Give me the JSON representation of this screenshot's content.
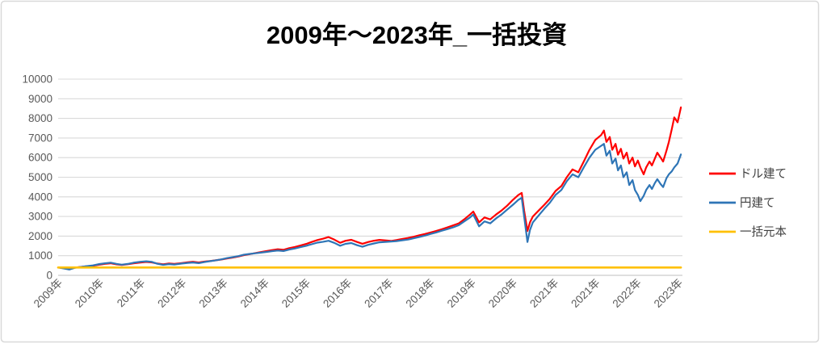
{
  "chart_data": {
    "type": "line",
    "title": "2009年〜2023年_一括投資",
    "xlabel": "",
    "ylabel": "",
    "ylim": [
      0,
      10000
    ],
    "y_ticks": [
      0,
      1000,
      2000,
      3000,
      4000,
      5000,
      6000,
      7000,
      8000,
      9000,
      10000
    ],
    "x_tick_labels": [
      "2009年",
      "2010年",
      "2011年",
      "2012年",
      "2013年",
      "2014年",
      "2015年",
      "2016年",
      "2017年",
      "2018年",
      "2019年",
      "2020年",
      "2021年",
      "2021年",
      "2022年",
      "2023年"
    ],
    "x_domain": [
      0,
      15.06
    ],
    "grid": true,
    "legend_position": "right",
    "series": [
      {
        "name": "ドル建て",
        "color": "#FF0000",
        "x": [
          0,
          0.14,
          0.27,
          0.41,
          0.55,
          0.68,
          0.82,
          1,
          1.13,
          1.27,
          1.41,
          1.54,
          1.68,
          1.82,
          1.99,
          2.13,
          2.27,
          2.4,
          2.54,
          2.68,
          2.81,
          2.99,
          3.13,
          3.26,
          3.4,
          3.54,
          3.67,
          3.81,
          3.95,
          4.08,
          4.22,
          4.36,
          4.49,
          4.63,
          4.77,
          4.9,
          5.04,
          5.18,
          5.31,
          5.45,
          5.59,
          5.72,
          5.86,
          6,
          6.13,
          6.27,
          6.41,
          6.54,
          6.68,
          6.82,
          6.95,
          7.09,
          7.23,
          7.36,
          7.5,
          7.64,
          7.77,
          7.91,
          8.05,
          8.18,
          8.32,
          8.46,
          8.59,
          8.73,
          8.87,
          9,
          9.14,
          9.28,
          9.41,
          9.55,
          9.69,
          9.82,
          9.96,
          10.04,
          10.18,
          10.31,
          10.45,
          10.59,
          10.72,
          10.86,
          11,
          11.13,
          11.21,
          11.27,
          11.35,
          11.41,
          11.48,
          11.62,
          11.76,
          11.89,
          12.03,
          12.17,
          12.3,
          12.44,
          12.58,
          12.71,
          12.85,
          12.99,
          13.13,
          13.2,
          13.26,
          13.34,
          13.4,
          13.48,
          13.54,
          13.61,
          13.67,
          13.75,
          13.81,
          13.89,
          13.95,
          14.02,
          14.08,
          14.16,
          14.22,
          14.3,
          14.36,
          14.43,
          14.49,
          14.57,
          14.63,
          14.71,
          14.77,
          14.84,
          14.9,
          14.98,
          15.06
        ],
        "values": [
          400,
          370,
          340,
          400,
          430,
          455,
          480,
          545,
          585,
          615,
          560,
          530,
          565,
          610,
          655,
          685,
          660,
          600,
          565,
          600,
          580,
          625,
          665,
          690,
          655,
          700,
          730,
          765,
          805,
          855,
          905,
          960,
          1030,
          1080,
          1135,
          1185,
          1240,
          1290,
          1330,
          1300,
          1385,
          1445,
          1520,
          1600,
          1700,
          1800,
          1870,
          1950,
          1820,
          1660,
          1760,
          1810,
          1700,
          1610,
          1700,
          1765,
          1805,
          1780,
          1755,
          1800,
          1855,
          1905,
          1965,
          2035,
          2105,
          2180,
          2260,
          2350,
          2440,
          2545,
          2650,
          2850,
          3100,
          3250,
          2700,
          2950,
          2850,
          3100,
          3300,
          3550,
          3850,
          4100,
          4200,
          3300,
          2260,
          2700,
          3000,
          3300,
          3600,
          3900,
          4300,
          4550,
          5000,
          5400,
          5250,
          5800,
          6400,
          6900,
          7150,
          7380,
          6800,
          7050,
          6400,
          6700,
          6150,
          6450,
          5950,
          6250,
          5700,
          6000,
          5550,
          5850,
          5500,
          5150,
          5500,
          5800,
          5600,
          5950,
          6250,
          6000,
          5800,
          6350,
          6800,
          7450,
          8050,
          7800,
          8560
        ]
      },
      {
        "name": "円建て",
        "color": "#2E75B6",
        "x": [
          0,
          0.14,
          0.27,
          0.41,
          0.55,
          0.68,
          0.82,
          1,
          1.13,
          1.27,
          1.41,
          1.54,
          1.68,
          1.82,
          1.99,
          2.13,
          2.27,
          2.4,
          2.54,
          2.68,
          2.81,
          2.99,
          3.13,
          3.26,
          3.4,
          3.54,
          3.67,
          3.81,
          3.95,
          4.08,
          4.22,
          4.36,
          4.49,
          4.63,
          4.77,
          4.9,
          5.04,
          5.18,
          5.31,
          5.45,
          5.59,
          5.72,
          5.86,
          6,
          6.13,
          6.27,
          6.41,
          6.54,
          6.68,
          6.82,
          6.95,
          7.09,
          7.23,
          7.36,
          7.5,
          7.64,
          7.77,
          7.91,
          8.05,
          8.18,
          8.32,
          8.46,
          8.59,
          8.73,
          8.87,
          9,
          9.14,
          9.28,
          9.41,
          9.55,
          9.69,
          9.82,
          9.96,
          10.04,
          10.18,
          10.31,
          10.45,
          10.59,
          10.72,
          10.86,
          11,
          11.13,
          11.21,
          11.27,
          11.35,
          11.41,
          11.48,
          11.62,
          11.76,
          11.89,
          12.03,
          12.17,
          12.3,
          12.44,
          12.58,
          12.71,
          12.85,
          12.99,
          13.13,
          13.2,
          13.26,
          13.34,
          13.4,
          13.48,
          13.54,
          13.61,
          13.67,
          13.75,
          13.81,
          13.89,
          13.95,
          14.02,
          14.08,
          14.16,
          14.22,
          14.3,
          14.36,
          14.43,
          14.49,
          14.57,
          14.63,
          14.71,
          14.77,
          14.84,
          14.9,
          14.98,
          15.06
        ],
        "values": [
          400,
          345,
          295,
          385,
          430,
          465,
          500,
          575,
          615,
          645,
          585,
          545,
          580,
          640,
          690,
          715,
          685,
          590,
          535,
          570,
          550,
          600,
          635,
          655,
          620,
          680,
          720,
          765,
          815,
          875,
          925,
          980,
          1050,
          1090,
          1125,
          1155,
          1195,
          1235,
          1265,
          1240,
          1315,
          1365,
          1435,
          1505,
          1585,
          1665,
          1710,
          1760,
          1655,
          1505,
          1605,
          1645,
          1535,
          1455,
          1555,
          1625,
          1685,
          1705,
          1725,
          1745,
          1785,
          1825,
          1885,
          1955,
          2025,
          2105,
          2185,
          2275,
          2355,
          2445,
          2555,
          2750,
          2950,
          3100,
          2500,
          2750,
          2650,
          2900,
          3100,
          3350,
          3600,
          3850,
          3950,
          3000,
          1700,
          2310,
          2700,
          3050,
          3400,
          3700,
          4100,
          4350,
          4800,
          5150,
          5000,
          5500,
          6000,
          6400,
          6600,
          6700,
          6100,
          6350,
          5700,
          5950,
          5350,
          5600,
          5000,
          5250,
          4600,
          4850,
          4350,
          4100,
          3780,
          4050,
          4350,
          4600,
          4400,
          4700,
          4900,
          4650,
          4500,
          4950,
          5150,
          5300,
          5500,
          5700,
          6160
        ]
      },
      {
        "name": "一括元本",
        "color": "#FFC000",
        "x": [
          0,
          15.06
        ],
        "values": [
          400,
          400
        ]
      }
    ]
  },
  "colors": {
    "grid": "#D9D9D9",
    "axis": "#BFBFBF",
    "tick_text": "#595959",
    "legend_text": "#404040",
    "title_text": "#000000",
    "border": "#D9D9D9",
    "background": "#FFFFFF"
  }
}
